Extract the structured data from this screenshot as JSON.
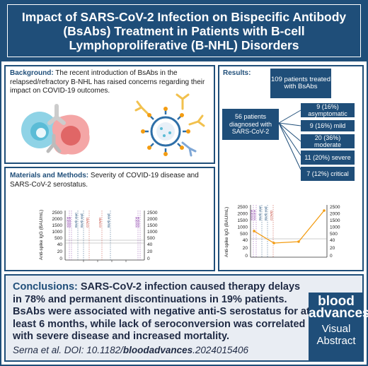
{
  "header": {
    "title": "Impact of SARS-CoV-2 Infection on Bispecific Antibody (BsAbs) Treatment in Patients with B-cell Lymphoproliferative (B-NHL) Disorders"
  },
  "background": {
    "label": "Background:",
    "text": "The recent introduction of BsAbs in the relapsed/refractory B-NHL has raised concerns regarding their impact on COVID-19 outcomes."
  },
  "methods": {
    "label": "Materials and Methods:",
    "text": "Severity of COVID-19 disease and SARS-CoV-2 serostatus.",
    "chart": {
      "ylabel": "Anti-spike IgG (BAU/mL)",
      "ticks_upper": [
        "2500",
        "2000",
        "1500",
        "1000",
        "500"
      ],
      "ticks_lower": [
        "40",
        "20",
        "0"
      ],
      "event_labels": [
        "vaccine",
        "vaccine",
        "BsAb start",
        "BsAb end",
        "COVID",
        "COVID",
        "BsAb end",
        "vaccine",
        "vaccine"
      ]
    }
  },
  "results": {
    "label": "Results:",
    "total": "109 patients treated with BsAbs",
    "diagnosed": "56 patients diagnosed with SARS-CoV-2",
    "outcomes": [
      "9 (16%) asymptomatic",
      "9 (16%) mild",
      "20 (36%) moderate",
      "11 (20%) severe",
      "7 (12%) critical"
    ],
    "chart": {
      "ylabel": "Anti-spike IgG (BAU/mL)",
      "ticks_upper": [
        "2500",
        "2000",
        "1500",
        "1000",
        "500"
      ],
      "ticks_lower": [
        "40",
        "20",
        "0"
      ],
      "event_labels": [
        "vaccine",
        "vaccine",
        "BsAb start",
        "BsAb end",
        "COVID"
      ],
      "series_color": "#f39c12"
    }
  },
  "conclusions": {
    "label": "Conclusions:",
    "text": "SARS-CoV-2 infection caused therapy delays in 78% and permanent discontinuations in 19% patients. BsAbs were associated with negative anti-S serostatus for at least 6 months, while lack of seroconversion was correlated with severe disease and increased mortality."
  },
  "citation": {
    "prefix": "Serna et al. DOI: 10.1182/",
    "journal": "bloodadvances",
    "suffix": ".2024015406"
  },
  "badge": {
    "line1": "blood",
    "line2": "advances",
    "line3": "Visual",
    "line4": "Abstract"
  },
  "colors": {
    "navy": "#1f4e79",
    "orange": "#f39c12",
    "red": "#c0392b",
    "purple": "#8e44ad"
  }
}
